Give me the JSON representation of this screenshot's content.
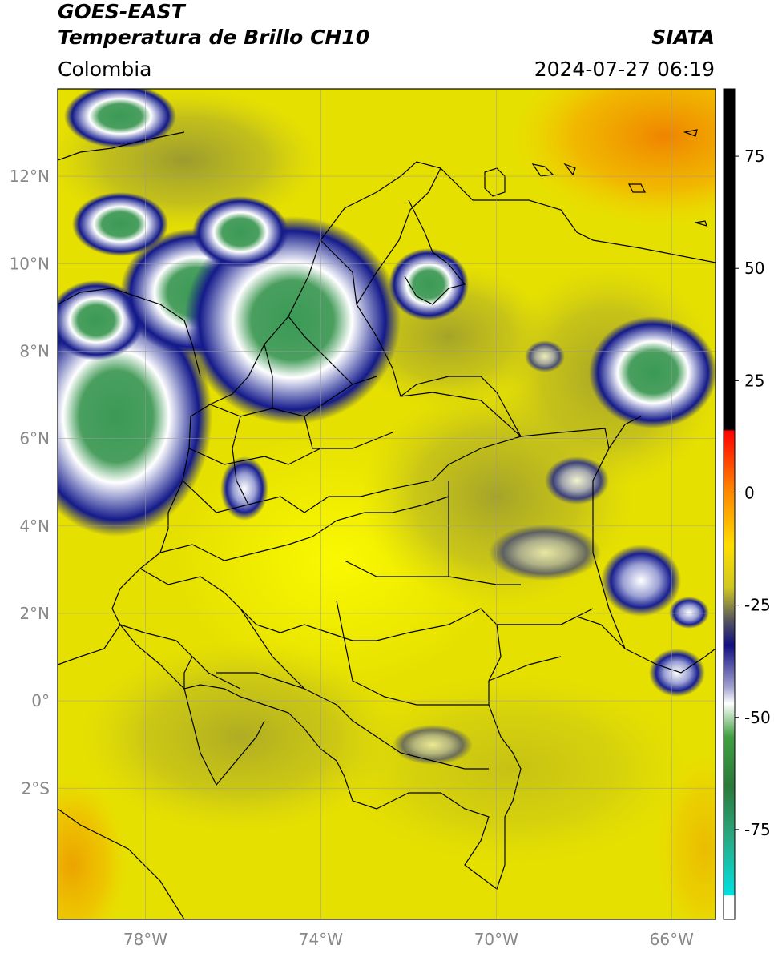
{
  "header": {
    "satellite": "GOES-EAST",
    "product": "Temperatura de Brillo CH10",
    "region": "Colombia",
    "organization": "SIATA",
    "datetime": "2024-07-27 06:19"
  },
  "map": {
    "lon_range": [
      -80,
      -65
    ],
    "lat_range": [
      -5,
      14
    ],
    "lat_ticks": [
      {
        "value": 12,
        "label": "12°N"
      },
      {
        "value": 10,
        "label": "10°N"
      },
      {
        "value": 8,
        "label": "8°N"
      },
      {
        "value": 6,
        "label": "6°N"
      },
      {
        "value": 4,
        "label": "4°N"
      },
      {
        "value": 2,
        "label": "2°N"
      },
      {
        "value": 0,
        "label": "0°"
      },
      {
        "value": -2,
        "label": "2°S"
      }
    ],
    "lon_ticks": [
      {
        "value": -78,
        "label": "78°W"
      },
      {
        "value": -74,
        "label": "74°W"
      },
      {
        "value": -70,
        "label": "70°W"
      },
      {
        "value": -66,
        "label": "66°W"
      }
    ],
    "gridlines": true,
    "background_color": "#e6e000"
  },
  "colorbar": {
    "min": -95,
    "max": 90,
    "ticks": [
      {
        "value": 75,
        "label": "75"
      },
      {
        "value": 50,
        "label": "50"
      },
      {
        "value": 25,
        "label": "25"
      },
      {
        "value": 0,
        "label": "0"
      },
      {
        "value": -25,
        "label": "-25"
      },
      {
        "value": -50,
        "label": "-50"
      },
      {
        "value": -75,
        "label": "-75"
      }
    ]
  }
}
